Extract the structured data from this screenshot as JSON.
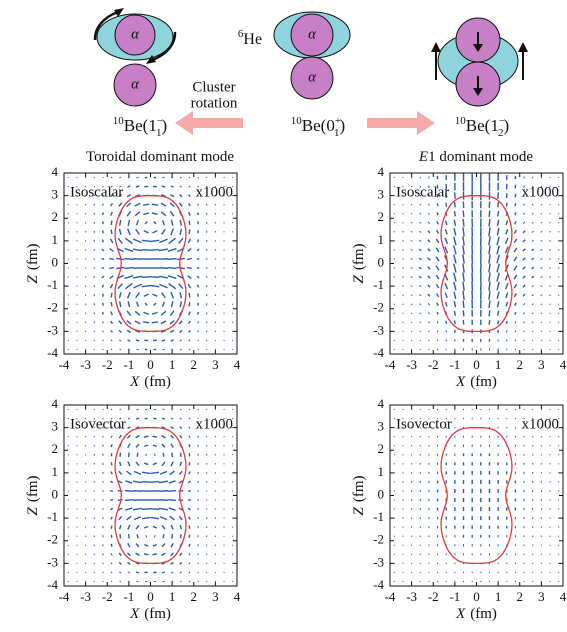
{
  "diagram": {
    "left_label": [
      "10",
      "Be(1",
      "−",
      "1",
      ")"
    ],
    "center_label": [
      "10",
      "Be(0",
      "+",
      "1",
      ")"
    ],
    "right_label": [
      "10",
      "Be(1",
      "−",
      "2",
      ")"
    ],
    "he_label": [
      "6",
      "He"
    ],
    "alpha": "α",
    "cluster_rotation": [
      "Cluster",
      "rotation"
    ]
  },
  "columns": [
    {
      "title": [
        "",
        "Toroidal dominant mode"
      ]
    },
    {
      "title": [
        "E",
        "1 dominant mode"
      ]
    }
  ],
  "axes": {
    "xticks": [
      -4,
      -3,
      -2,
      -1,
      0,
      1,
      2,
      3,
      4
    ],
    "yticks": [
      -4,
      -3,
      -2,
      -1,
      0,
      1,
      2,
      3,
      4
    ],
    "xlim": [
      -4,
      4
    ],
    "ylim": [
      -4,
      4
    ],
    "xlabel": "X",
    "ylabel": "Z",
    "unit": "(fm)"
  },
  "panels": [
    {
      "label": "Isoscalar",
      "scale": "x1000"
    },
    {
      "label": "Isoscalar",
      "scale": "x1000"
    },
    {
      "label": "Isovector",
      "scale": "x1000"
    },
    {
      "label": "Isovector",
      "scale": "x1000"
    }
  ]
}
